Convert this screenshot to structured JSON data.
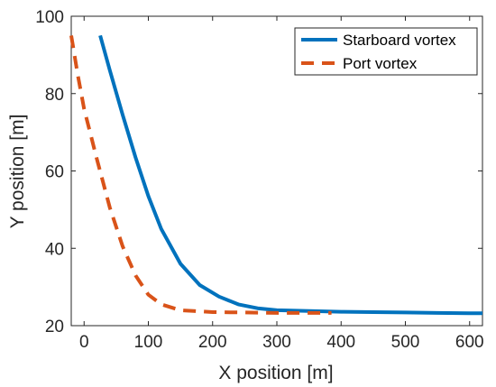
{
  "chart_data": {
    "type": "line",
    "xlabel": "X position [m]",
    "ylabel": "Y position [m]",
    "xlim": [
      -20,
      620
    ],
    "ylim": [
      20,
      100
    ],
    "xticks": [
      0,
      100,
      200,
      300,
      400,
      500,
      600
    ],
    "yticks": [
      20,
      40,
      60,
      80,
      100
    ],
    "grid": false,
    "legend_position": "top-right",
    "series": [
      {
        "name": "Starboard vortex",
        "color": "#0072BD",
        "style": "solid",
        "x": [
          25,
          40,
          60,
          80,
          100,
          120,
          150,
          180,
          210,
          240,
          270,
          300,
          350,
          400,
          450,
          500,
          550,
          600,
          620
        ],
        "y": [
          95,
          86,
          74.5,
          63.5,
          53.5,
          45,
          36,
          30.5,
          27.5,
          25.5,
          24.5,
          24,
          23.8,
          23.6,
          23.5,
          23.4,
          23.3,
          23.2,
          23.2
        ]
      },
      {
        "name": "Port vortex",
        "color": "#D95319",
        "style": "dashed",
        "x": [
          -20,
          -10,
          0,
          20,
          40,
          60,
          80,
          100,
          120,
          150,
          200,
          250,
          300,
          350,
          385
        ],
        "y": [
          95,
          85,
          76,
          63,
          50.5,
          40.5,
          33,
          28,
          25.5,
          24,
          23.5,
          23.4,
          23.3,
          23.3,
          23.3
        ]
      }
    ]
  }
}
